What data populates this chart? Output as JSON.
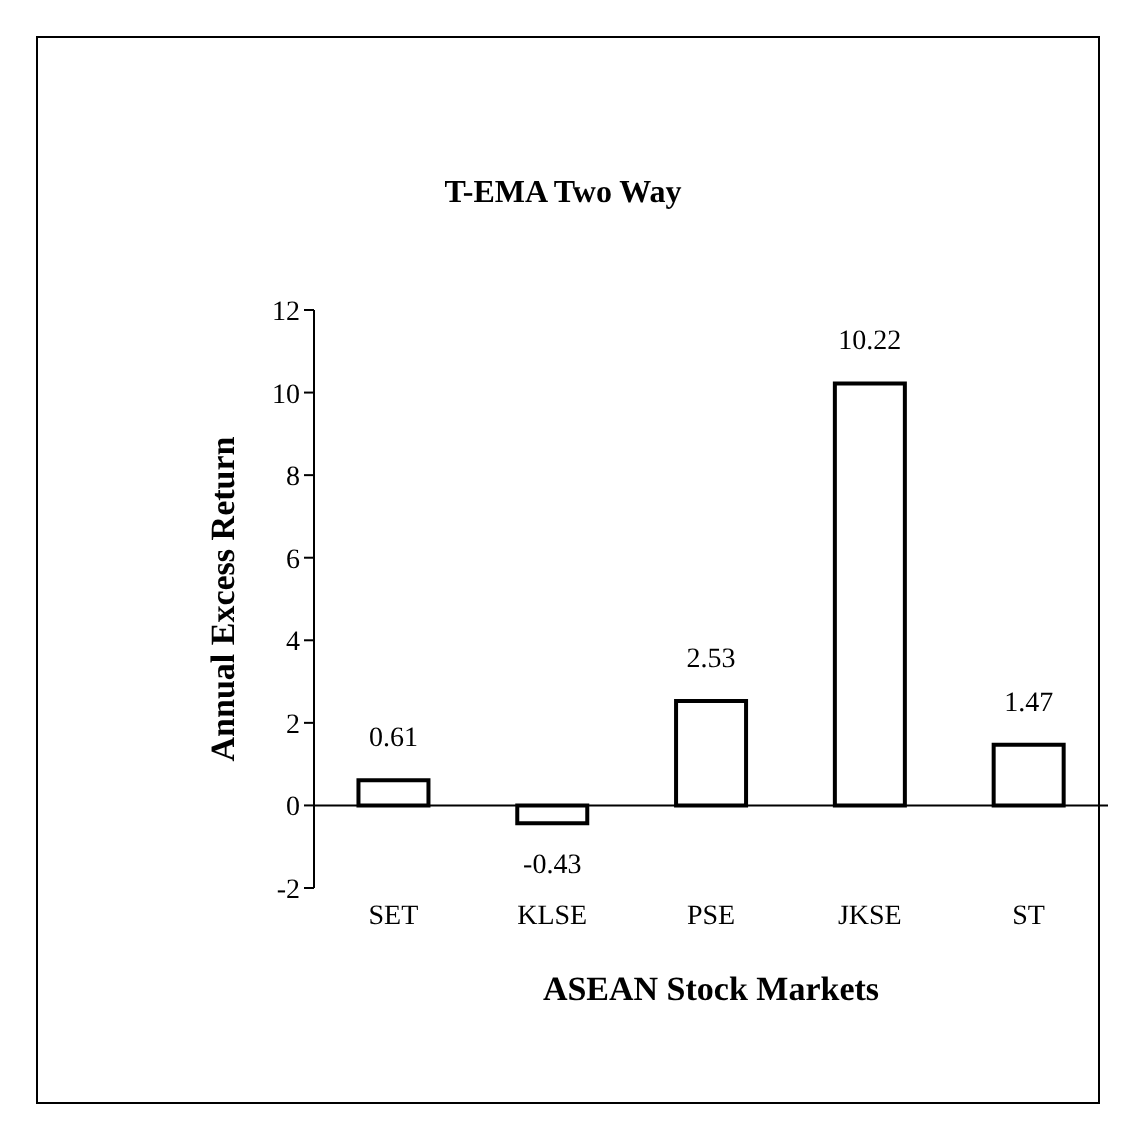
{
  "chart_data": {
    "type": "bar",
    "title": "T-EMA Two Way",
    "xlabel": "ASEAN Stock Markets",
    "ylabel": "Annual Excess Return",
    "categories": [
      "SET",
      "KLSE",
      "PSE",
      "JKSE",
      "ST"
    ],
    "values": [
      0.61,
      -0.43,
      2.53,
      10.22,
      1.47
    ],
    "color": "#ffffff",
    "ylim": [
      -2,
      12
    ],
    "yticks": [
      -2,
      0,
      2,
      4,
      6,
      8,
      10,
      12
    ],
    "data_labels": true
  }
}
